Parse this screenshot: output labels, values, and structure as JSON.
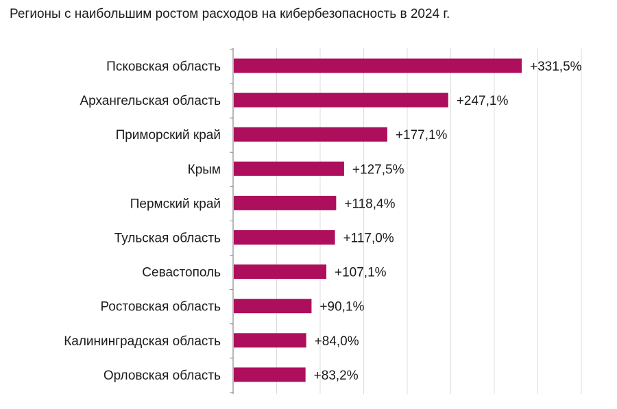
{
  "chart_data": {
    "type": "bar",
    "orientation": "horizontal",
    "title": "Регионы с наибольшим ростом расходов на кибербезопасность в 2024 г.",
    "categories": [
      "Псковская область",
      "Архангельская область",
      "Приморский край",
      "Крым",
      "Пермский край",
      "Тульская область",
      "Севастополь",
      "Ростовская область",
      "Калининградская область",
      "Орловская область"
    ],
    "values": [
      331.5,
      247.1,
      177.1,
      127.5,
      118.4,
      117.0,
      107.1,
      90.1,
      84.0,
      83.2
    ],
    "value_labels": [
      "+331,5%",
      "+247,1%",
      "+177,1%",
      "+127,5%",
      "+118,4%",
      "+117,0%",
      "+107,1%",
      "+90,1%",
      "+84,0%",
      "+83,2%"
    ],
    "xlim": [
      0,
      400
    ],
    "grid": "vertical",
    "bar_color": "#ae0f5c",
    "axis_color": "#888888",
    "grid_color": "#dcdcdc"
  }
}
